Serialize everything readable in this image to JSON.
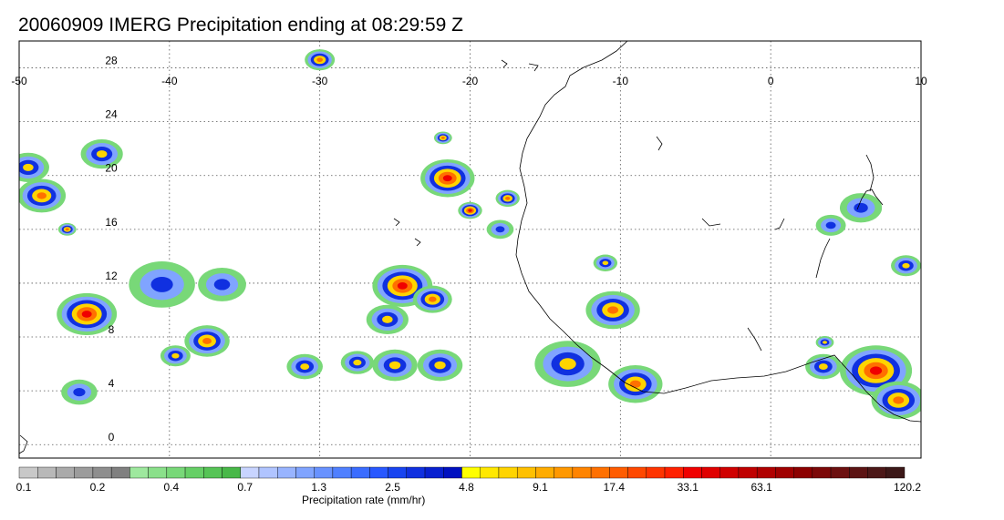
{
  "title": "20060909 IMERG Precipitation ending at 08:29:59 Z",
  "map": {
    "lon_range": [
      -50,
      10
    ],
    "lat_range": [
      -1,
      30
    ],
    "lon_ticks": [
      "-50",
      "-40",
      "-30",
      "-20",
      "-10",
      "0",
      "10"
    ],
    "lon_tick_values": [
      -50,
      -40,
      -30,
      -20,
      -10,
      0,
      10
    ],
    "lat_ticks": [
      "0",
      "4",
      "8",
      "12",
      "16",
      "20",
      "24",
      "28"
    ],
    "lat_tick_values": [
      0,
      4,
      8,
      12,
      16,
      20,
      24,
      28
    ],
    "grid": "dotted"
  },
  "colorbar": {
    "title": "Precipitation rate (mm/hr)",
    "labels": [
      "0.1",
      "0.2",
      "0.4",
      "0.7",
      "1.3",
      "2.5",
      "4.8",
      "9.1",
      "17.4",
      "33.1",
      "63.1",
      "120.2"
    ],
    "colors": [
      "#c8c8c8",
      "#b8b8b8",
      "#aaaaaa",
      "#9c9c9c",
      "#8e8e8e",
      "#808080",
      "#9ee89e",
      "#8ae08a",
      "#78d878",
      "#66cf66",
      "#56c456",
      "#48b848",
      "#c8d4ff",
      "#b0c4ff",
      "#98b4ff",
      "#80a4ff",
      "#6892ff",
      "#5080ff",
      "#3a6cff",
      "#2858ff",
      "#1844f0",
      "#1030e0",
      "#0820d0",
      "#0010c0",
      "#ffff00",
      "#ffe800",
      "#ffd400",
      "#ffc000",
      "#ffac00",
      "#ff9800",
      "#ff8400",
      "#ff7000",
      "#ff5c00",
      "#ff4800",
      "#ff3400",
      "#ff2000",
      "#f00000",
      "#e00000",
      "#d00000",
      "#c00000",
      "#b00000",
      "#a00000",
      "#8c0000",
      "#7c0808",
      "#6c1010",
      "#5c1414",
      "#4c1818",
      "#3c1818"
    ]
  },
  "precip_cells": [
    {
      "lon": -48.5,
      "lat": 18.5,
      "r": 1.6,
      "level": 3
    },
    {
      "lon": -49.4,
      "lat": 20.6,
      "r": 1.4,
      "level": 2
    },
    {
      "lon": -46.8,
      "lat": 16.0,
      "r": 0.6,
      "level": 3
    },
    {
      "lon": -44.5,
      "lat": 21.6,
      "r": 1.4,
      "level": 2
    },
    {
      "lon": -45.5,
      "lat": 9.7,
      "r": 2.0,
      "level": 4
    },
    {
      "lon": -46.0,
      "lat": 3.9,
      "r": 1.2,
      "level": 1
    },
    {
      "lon": -40.5,
      "lat": 11.9,
      "r": 2.2,
      "level": 1
    },
    {
      "lon": -36.5,
      "lat": 11.9,
      "r": 1.6,
      "level": 1
    },
    {
      "lon": -37.5,
      "lat": 7.7,
      "r": 1.5,
      "level": 3
    },
    {
      "lon": -39.6,
      "lat": 6.6,
      "r": 1.0,
      "level": 2
    },
    {
      "lon": -30.0,
      "lat": 28.6,
      "r": 1.0,
      "level": 3
    },
    {
      "lon": -31.0,
      "lat": 5.8,
      "r": 1.2,
      "level": 2
    },
    {
      "lon": -27.5,
      "lat": 6.1,
      "r": 1.1,
      "level": 2
    },
    {
      "lon": -25.0,
      "lat": 5.9,
      "r": 1.5,
      "level": 2
    },
    {
      "lon": -22.0,
      "lat": 5.9,
      "r": 1.5,
      "level": 2
    },
    {
      "lon": -24.5,
      "lat": 11.8,
      "r": 2.0,
      "level": 4
    },
    {
      "lon": -22.5,
      "lat": 10.8,
      "r": 1.3,
      "level": 3
    },
    {
      "lon": -25.5,
      "lat": 9.3,
      "r": 1.4,
      "level": 2
    },
    {
      "lon": -21.5,
      "lat": 19.8,
      "r": 1.8,
      "level": 4
    },
    {
      "lon": -20.0,
      "lat": 17.4,
      "r": 0.8,
      "level": 4
    },
    {
      "lon": -17.5,
      "lat": 18.3,
      "r": 0.8,
      "level": 3
    },
    {
      "lon": -18.0,
      "lat": 16.0,
      "r": 0.9,
      "level": 1
    },
    {
      "lon": -21.8,
      "lat": 22.8,
      "r": 0.6,
      "level": 3
    },
    {
      "lon": -10.5,
      "lat": 10.0,
      "r": 1.8,
      "level": 3
    },
    {
      "lon": -11.0,
      "lat": 13.5,
      "r": 0.8,
      "level": 2
    },
    {
      "lon": -13.5,
      "lat": 6.0,
      "r": 2.2,
      "level": 2
    },
    {
      "lon": -9.0,
      "lat": 4.5,
      "r": 1.8,
      "level": 3
    },
    {
      "lon": 7.0,
      "lat": 5.5,
      "r": 2.4,
      "level": 4
    },
    {
      "lon": 8.5,
      "lat": 3.3,
      "r": 1.8,
      "level": 3
    },
    {
      "lon": 3.5,
      "lat": 5.8,
      "r": 1.2,
      "level": 2
    },
    {
      "lon": 9.0,
      "lat": 13.3,
      "r": 1.0,
      "level": 2
    },
    {
      "lon": 6.0,
      "lat": 17.6,
      "r": 1.4,
      "level": 1
    },
    {
      "lon": 4.0,
      "lat": 16.3,
      "r": 1.0,
      "level": 1
    },
    {
      "lon": 3.6,
      "lat": 7.6,
      "r": 0.6,
      "level": 2
    }
  ]
}
